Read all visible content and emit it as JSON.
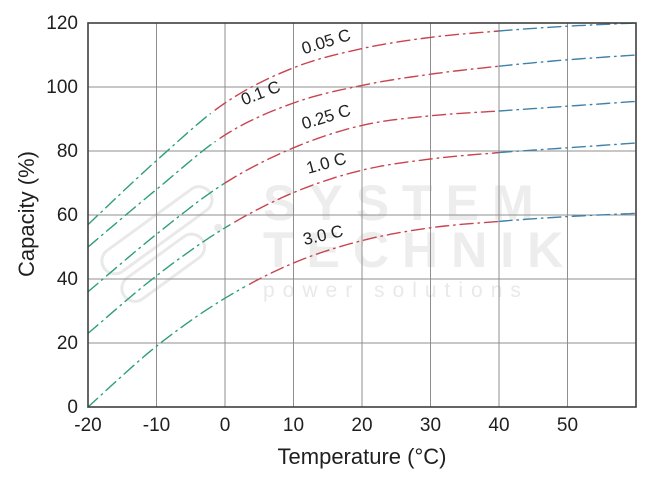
{
  "watermark": {
    "line1": "SYSTEM",
    "line2": "TECHNIK",
    "tagline": "power solutions"
  },
  "chart_data": {
    "type": "line",
    "title": "",
    "xlabel": "Temperature (°C)",
    "ylabel": "Capacity (%)",
    "x": [
      -20,
      -10,
      0,
      10,
      20,
      30,
      40,
      50,
      60
    ],
    "xlim": [
      -20,
      60
    ],
    "ylim": [
      0,
      120
    ],
    "x_ticks": [
      -20,
      -10,
      0,
      10,
      20,
      30,
      40,
      50
    ],
    "y_ticks": [
      0,
      20,
      40,
      60,
      80,
      100,
      120
    ],
    "grid": true,
    "line_style": "dash-dot",
    "legend_position": "inline-labels",
    "segment_colors": {
      "cold": "#2E9E7B",
      "mid": "#C94350",
      "warm": "#3F81A8"
    },
    "series": [
      {
        "name": "0.05 C",
        "values": [
          57,
          77,
          95,
          106,
          112,
          115.5,
          117.5,
          119,
          120
        ],
        "green_until": -2,
        "blue_from": 40,
        "label": {
          "t": 15,
          "cap": 112.5,
          "rot": -17
        }
      },
      {
        "name": "0.1 C",
        "values": [
          50,
          68,
          85,
          95,
          100.5,
          104,
          106.5,
          108.5,
          110
        ],
        "green_until": -1,
        "blue_from": 40,
        "label": {
          "t": 5.5,
          "cap": 96.5,
          "rot": -21
        }
      },
      {
        "name": "0.25 C",
        "values": [
          36,
          54,
          70,
          81,
          88,
          91,
          92.5,
          94,
          95.5
        ],
        "green_until": 0,
        "blue_from": 40,
        "label": {
          "t": 15,
          "cap": 89,
          "rot": -17
        }
      },
      {
        "name": "1.0 C",
        "values": [
          23,
          41,
          56,
          67,
          74,
          77.5,
          79.5,
          81,
          82.5
        ],
        "green_until": 1,
        "blue_from": 40,
        "label": {
          "t": 15,
          "cap": 74.5,
          "rot": -15
        }
      },
      {
        "name": "3.0 C",
        "values": [
          0,
          19,
          34,
          45,
          52,
          56,
          58,
          59.5,
          60.5
        ],
        "green_until": 3,
        "blue_from": 40,
        "label": {
          "t": 14.5,
          "cap": 52,
          "rot": -13
        }
      }
    ]
  },
  "colors": {
    "grid": "#8F8F8F",
    "border": "#3F3F3F",
    "text": "#1F1F1F",
    "background": "#FFFFFF"
  }
}
